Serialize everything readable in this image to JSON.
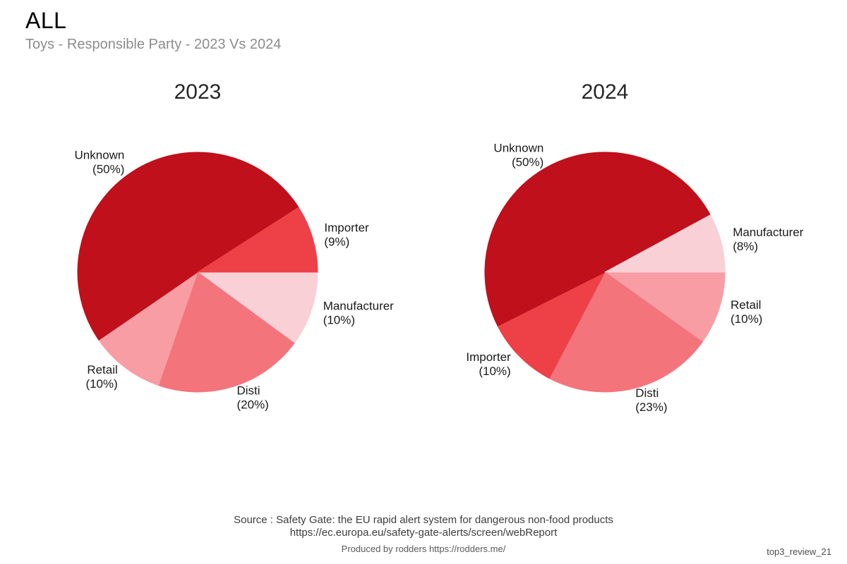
{
  "header": {
    "title": "ALL",
    "subtitle": "Toys - Responsible Party - 2023 Vs 2024"
  },
  "footer": {
    "source_line1": "Source : Safety Gate: the EU rapid alert system for dangerous non-food products",
    "source_line2": "https://ec.europa.eu/safety-gate-alerts/screen/webReport",
    "produced_by": "Produced by rodders https://rodders.me/",
    "watermark": "top3_review_21"
  },
  "colors": {
    "unknown": "#bf101b",
    "importer": "#ee4047",
    "disti": "#f4747c",
    "retail": "#f89da4",
    "manufacturer": "#f9d0d6",
    "title_text": "#262626",
    "subtitle_text": "#8c8c8c",
    "label_text": "#1a1a1a"
  },
  "chart_data": [
    {
      "type": "pie",
      "title": "2023",
      "legend": "none",
      "label_position": "outside",
      "start_angle_deg": 0,
      "direction": "clockwise",
      "slice_order_note": "slices listed clockwise starting at 3 o'clock",
      "slices": [
        {
          "label": "Manufacturer",
          "pct": 10,
          "color": "#f9d0d6"
        },
        {
          "label": "Disti",
          "pct": 20,
          "color": "#f4747c"
        },
        {
          "label": "Retail",
          "pct": 10,
          "color": "#f89da4"
        },
        {
          "label": "Unknown",
          "pct": 50,
          "color": "#bf101b"
        },
        {
          "label": "Importer",
          "pct": 9,
          "color": "#ee4047"
        }
      ]
    },
    {
      "type": "pie",
      "title": "2024",
      "legend": "none",
      "label_position": "outside",
      "start_angle_deg": 0,
      "direction": "clockwise",
      "slice_order_note": "slices listed clockwise starting at 3 o'clock",
      "slices": [
        {
          "label": "Retail",
          "pct": 10,
          "color": "#f89da4"
        },
        {
          "label": "Disti",
          "pct": 23,
          "color": "#f4747c"
        },
        {
          "label": "Importer",
          "pct": 10,
          "color": "#ee4047"
        },
        {
          "label": "Unknown",
          "pct": 50,
          "color": "#bf101b"
        },
        {
          "label": "Manufacturer",
          "pct": 8,
          "color": "#f9d0d6"
        }
      ]
    }
  ]
}
